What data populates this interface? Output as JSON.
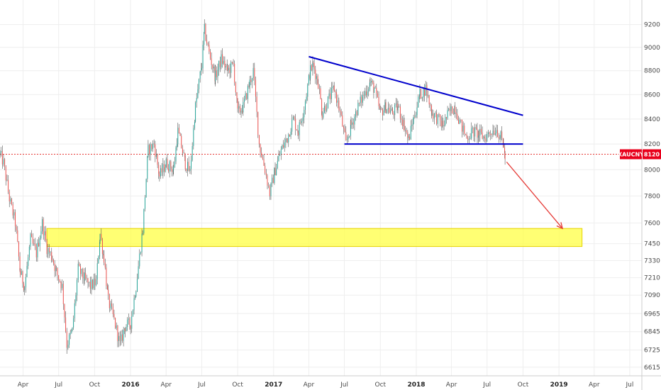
{
  "chart_data": {
    "type": "candlestick",
    "symbol_label": "XAUCNY",
    "price_label": "8120",
    "last_price": 8120,
    "x_range": [
      "2015-02-01",
      "2019-08-01"
    ],
    "y_scale": "log",
    "y_range": [
      6560,
      9420
    ],
    "y_ticks": [
      9200,
      9000,
      8800,
      8600,
      8400,
      8200,
      8000,
      7800,
      7600,
      7450,
      7330,
      7210,
      7090,
      6965,
      6845,
      6725,
      6615
    ],
    "x_ticks": [
      {
        "date": "2015-04-01",
        "label": "Apr",
        "bold": false
      },
      {
        "date": "2015-07-01",
        "label": "Jul",
        "bold": false
      },
      {
        "date": "2015-10-01",
        "label": "Oct",
        "bold": false
      },
      {
        "date": "2016-01-01",
        "label": "2016",
        "bold": true
      },
      {
        "date": "2016-04-01",
        "label": "Apr",
        "bold": false
      },
      {
        "date": "2016-07-01",
        "label": "Jul",
        "bold": false
      },
      {
        "date": "2016-10-01",
        "label": "Oct",
        "bold": false
      },
      {
        "date": "2017-01-01",
        "label": "2017",
        "bold": true
      },
      {
        "date": "2017-04-01",
        "label": "Apr",
        "bold": false
      },
      {
        "date": "2017-07-01",
        "label": "Jul",
        "bold": false
      },
      {
        "date": "2017-10-01",
        "label": "Oct",
        "bold": false
      },
      {
        "date": "2018-01-01",
        "label": "2018",
        "bold": true
      },
      {
        "date": "2018-04-01",
        "label": "Apr",
        "bold": false
      },
      {
        "date": "2018-07-01",
        "label": "Jul",
        "bold": false
      },
      {
        "date": "2018-10-01",
        "label": "Oct",
        "bold": false
      },
      {
        "date": "2019-01-01",
        "label": "2019",
        "bold": true
      },
      {
        "date": "2019-04-01",
        "label": "Apr",
        "bold": false
      },
      {
        "date": "2019-07-01",
        "label": "Jul",
        "bold": false
      }
    ],
    "price_path": [
      [
        "2015-02-01",
        8120
      ],
      [
        "2015-02-10",
        8050
      ],
      [
        "2015-02-25",
        7780
      ],
      [
        "2015-03-12",
        7600
      ],
      [
        "2015-03-25",
        7240
      ],
      [
        "2015-04-05",
        7150
      ],
      [
        "2015-04-20",
        7480
      ],
      [
        "2015-05-05",
        7380
      ],
      [
        "2015-05-20",
        7600
      ],
      [
        "2015-06-01",
        7420
      ],
      [
        "2015-06-15",
        7350
      ],
      [
        "2015-06-25",
        7250
      ],
      [
        "2015-07-10",
        7150
      ],
      [
        "2015-07-22",
        6760
      ],
      [
        "2015-08-05",
        6850
      ],
      [
        "2015-08-20",
        7270
      ],
      [
        "2015-09-05",
        7200
      ],
      [
        "2015-09-20",
        7150
      ],
      [
        "2015-10-05",
        7180
      ],
      [
        "2015-10-15",
        7520
      ],
      [
        "2015-10-25",
        7350
      ],
      [
        "2015-11-05",
        7050
      ],
      [
        "2015-11-20",
        6920
      ],
      [
        "2015-12-05",
        6760
      ],
      [
        "2015-12-18",
        6880
      ],
      [
        "2016-01-01",
        6900
      ],
      [
        "2016-01-15",
        7150
      ],
      [
        "2016-02-01",
        7550
      ],
      [
        "2016-02-15",
        8150
      ],
      [
        "2016-03-01",
        8200
      ],
      [
        "2016-03-15",
        7950
      ],
      [
        "2016-04-01",
        8050
      ],
      [
        "2016-04-20",
        8000
      ],
      [
        "2016-05-01",
        8300
      ],
      [
        "2016-05-20",
        8050
      ],
      [
        "2016-06-01",
        7980
      ],
      [
        "2016-06-15",
        8500
      ],
      [
        "2016-07-01",
        8850
      ],
      [
        "2016-07-08",
        9150
      ],
      [
        "2016-07-20",
        8950
      ],
      [
        "2016-08-05",
        8750
      ],
      [
        "2016-08-20",
        8900
      ],
      [
        "2016-09-05",
        8800
      ],
      [
        "2016-09-20",
        8850
      ],
      [
        "2016-10-01",
        8450
      ],
      [
        "2016-10-15",
        8500
      ],
      [
        "2016-11-01",
        8700
      ],
      [
        "2016-11-10",
        8800
      ],
      [
        "2016-11-25",
        8200
      ],
      [
        "2016-12-10",
        8000
      ],
      [
        "2016-12-22",
        7820
      ],
      [
        "2017-01-05",
        8000
      ],
      [
        "2017-01-20",
        8150
      ],
      [
        "2017-02-05",
        8250
      ],
      [
        "2017-02-20",
        8400
      ],
      [
        "2017-03-05",
        8300
      ],
      [
        "2017-03-20",
        8500
      ],
      [
        "2017-04-05",
        8800
      ],
      [
        "2017-04-12",
        8850
      ],
      [
        "2017-04-25",
        8700
      ],
      [
        "2017-05-05",
        8450
      ],
      [
        "2017-05-20",
        8550
      ],
      [
        "2017-06-05",
        8650
      ],
      [
        "2017-06-20",
        8450
      ],
      [
        "2017-07-05",
        8200
      ],
      [
        "2017-07-18",
        8350
      ],
      [
        "2017-08-05",
        8500
      ],
      [
        "2017-08-20",
        8600
      ],
      [
        "2017-09-05",
        8700
      ],
      [
        "2017-09-15",
        8650
      ],
      [
        "2017-10-01",
        8450
      ],
      [
        "2017-10-15",
        8500
      ],
      [
        "2017-11-01",
        8450
      ],
      [
        "2017-11-15",
        8500
      ],
      [
        "2017-12-01",
        8350
      ],
      [
        "2017-12-12",
        8230
      ],
      [
        "2017-12-25",
        8400
      ],
      [
        "2018-01-10",
        8600
      ],
      [
        "2018-01-25",
        8650
      ],
      [
        "2018-02-10",
        8450
      ],
      [
        "2018-02-25",
        8400
      ],
      [
        "2018-03-10",
        8350
      ],
      [
        "2018-03-25",
        8450
      ],
      [
        "2018-04-10",
        8500
      ],
      [
        "2018-04-25",
        8350
      ],
      [
        "2018-05-10",
        8250
      ],
      [
        "2018-05-25",
        8300
      ],
      [
        "2018-06-10",
        8280
      ],
      [
        "2018-06-25",
        8250
      ],
      [
        "2018-07-10",
        8300
      ],
      [
        "2018-07-25",
        8320
      ],
      [
        "2018-08-05",
        8250
      ],
      [
        "2018-08-12",
        8200
      ],
      [
        "2018-08-16",
        8080
      ]
    ],
    "support_zone": {
      "date_start": "2015-06-01",
      "date_end": "2019-03-01",
      "low": 7430,
      "high": 7560
    },
    "current_price_line": 8120,
    "resistance_trendline": [
      [
        "2017-04-01",
        8920
      ],
      [
        "2018-10-01",
        8430
      ]
    ],
    "support_trendline": [
      [
        "2017-07-01",
        8200
      ],
      [
        "2018-10-01",
        8200
      ]
    ],
    "projection_arrow": [
      [
        "2018-08-20",
        8060
      ],
      [
        "2019-01-10",
        7560
      ]
    ],
    "colors": {
      "bull": "#26a69a",
      "bear": "#ef5350",
      "wick": "#555555",
      "trendline": "#0000cc",
      "zone_fill": "#ffff44",
      "zone_border": "#e6d200",
      "price_line": "#e53935",
      "arrow": "#e53935",
      "grid": "#eeeeee"
    }
  }
}
